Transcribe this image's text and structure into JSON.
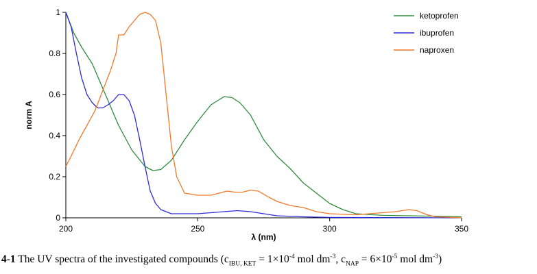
{
  "chart_data": {
    "type": "line",
    "xlabel": "λ (nm)",
    "ylabel": "norm A",
    "xlim": [
      200,
      350
    ],
    "ylim": [
      0,
      1
    ],
    "x_ticks": [
      200,
      250,
      300,
      350
    ],
    "y_ticks": [
      0,
      0.2,
      0.4,
      0.6,
      0.8,
      1
    ],
    "x_tick_labels": [
      "200",
      "250",
      "300",
      "350"
    ],
    "y_tick_labels": [
      "0",
      "0.2",
      "0.4",
      "0.6",
      "0.8",
      "1"
    ],
    "grid": false,
    "legend_position": "top-right",
    "series": [
      {
        "name": "ketoprofen",
        "color": "#2e8b3c",
        "points": [
          [
            200,
            1.0
          ],
          [
            203,
            0.9
          ],
          [
            206,
            0.83
          ],
          [
            210,
            0.75
          ],
          [
            215,
            0.6
          ],
          [
            220,
            0.45
          ],
          [
            225,
            0.33
          ],
          [
            230,
            0.25
          ],
          [
            233,
            0.23
          ],
          [
            236,
            0.235
          ],
          [
            240,
            0.28
          ],
          [
            245,
            0.38
          ],
          [
            250,
            0.47
          ],
          [
            255,
            0.55
          ],
          [
            260,
            0.59
          ],
          [
            263,
            0.585
          ],
          [
            266,
            0.56
          ],
          [
            270,
            0.5
          ],
          [
            275,
            0.38
          ],
          [
            280,
            0.3
          ],
          [
            285,
            0.24
          ],
          [
            290,
            0.17
          ],
          [
            295,
            0.12
          ],
          [
            300,
            0.07
          ],
          [
            305,
            0.04
          ],
          [
            310,
            0.02
          ],
          [
            320,
            0.012
          ],
          [
            330,
            0.01
          ],
          [
            340,
            0.008
          ],
          [
            350,
            0.005
          ]
        ]
      },
      {
        "name": "ibuprofen",
        "color": "#2b2bd9",
        "points": [
          [
            200,
            1.0
          ],
          [
            202,
            0.93
          ],
          [
            204,
            0.8
          ],
          [
            206,
            0.68
          ],
          [
            208,
            0.6
          ],
          [
            210,
            0.56
          ],
          [
            212,
            0.535
          ],
          [
            214,
            0.535
          ],
          [
            216,
            0.55
          ],
          [
            218,
            0.57
          ],
          [
            220,
            0.6
          ],
          [
            222,
            0.6
          ],
          [
            224,
            0.57
          ],
          [
            226,
            0.5
          ],
          [
            228,
            0.38
          ],
          [
            230,
            0.25
          ],
          [
            232,
            0.13
          ],
          [
            234,
            0.07
          ],
          [
            236,
            0.04
          ],
          [
            240,
            0.02
          ],
          [
            250,
            0.02
          ],
          [
            255,
            0.025
          ],
          [
            260,
            0.03
          ],
          [
            265,
            0.035
          ],
          [
            270,
            0.03
          ],
          [
            275,
            0.02
          ],
          [
            280,
            0.01
          ],
          [
            290,
            0.005
          ],
          [
            300,
            0.002
          ],
          [
            350,
            0.0
          ]
        ]
      },
      {
        "name": "naproxen",
        "color": "#f07828",
        "points": [
          [
            200,
            0.25
          ],
          [
            202,
            0.3
          ],
          [
            205,
            0.38
          ],
          [
            208,
            0.45
          ],
          [
            211,
            0.52
          ],
          [
            214,
            0.62
          ],
          [
            217,
            0.72
          ],
          [
            219,
            0.8
          ],
          [
            220,
            0.89
          ],
          [
            222,
            0.89
          ],
          [
            224,
            0.93
          ],
          [
            226,
            0.96
          ],
          [
            228,
            0.99
          ],
          [
            230,
            1.0
          ],
          [
            232,
            0.99
          ],
          [
            234,
            0.96
          ],
          [
            236,
            0.85
          ],
          [
            238,
            0.6
          ],
          [
            240,
            0.35
          ],
          [
            242,
            0.2
          ],
          [
            245,
            0.12
          ],
          [
            250,
            0.11
          ],
          [
            255,
            0.11
          ],
          [
            258,
            0.12
          ],
          [
            261,
            0.13
          ],
          [
            264,
            0.125
          ],
          [
            267,
            0.125
          ],
          [
            270,
            0.135
          ],
          [
            273,
            0.13
          ],
          [
            277,
            0.1
          ],
          [
            280,
            0.08
          ],
          [
            285,
            0.06
          ],
          [
            290,
            0.05
          ],
          [
            295,
            0.03
          ],
          [
            300,
            0.02
          ],
          [
            310,
            0.015
          ],
          [
            320,
            0.025
          ],
          [
            325,
            0.03
          ],
          [
            330,
            0.04
          ],
          [
            333,
            0.035
          ],
          [
            337,
            0.015
          ],
          [
            340,
            0.005
          ],
          [
            345,
            0.003
          ],
          [
            350,
            0.0
          ]
        ]
      }
    ]
  },
  "caption": {
    "prefix": "4-1",
    "text_main": " The UV spectra of the investigated compounds (c",
    "sub1": "IBU, KET",
    "eq1": " = 1×10",
    "sup1": "-4",
    "unit1": " mol dm",
    "sup2": "-3",
    "mid": ", c",
    "sub2": "NAP",
    "eq2": " = 6×10",
    "sup3": "-5",
    "unit2": " mol dm",
    "sup4": "-3",
    "end": ")"
  }
}
